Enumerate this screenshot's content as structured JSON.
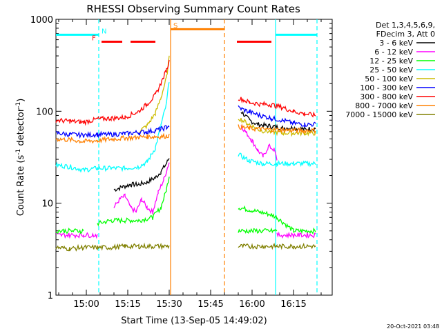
{
  "chart_data": {
    "type": "line",
    "title": "RHESSI Observing Summary Count Rates",
    "ylabel_main": "Count Rate (s",
    "ylabel_sup1": "-1",
    "ylabel_mid": " detector",
    "ylabel_sup2": "-1",
    "ylabel_end": ")",
    "xlabel": "Start Time (13-Sep-05 14:49:02)",
    "timestamp": "20-Oct-2021 03:48",
    "yscale": "log",
    "ylim": [
      1,
      1000
    ],
    "xlim_min": [
      0,
      100
    ],
    "y_ticks": [
      {
        "value": 1,
        "label": "1"
      },
      {
        "value": 10,
        "label": "10"
      },
      {
        "value": 100,
        "label": "100"
      },
      {
        "value": 1000,
        "label": "1000"
      }
    ],
    "x_ticks": [
      {
        "value": 11,
        "label": "15:00"
      },
      {
        "value": 26,
        "label": "15:15"
      },
      {
        "value": 41,
        "label": "15:30"
      },
      {
        "value": 56,
        "label": "15:45"
      },
      {
        "value": 71,
        "label": "16:00"
      },
      {
        "value": 86,
        "label": "16:15"
      }
    ],
    "legend_header": [
      "Det 1,3,4,5,6,9,",
      "FDecim 3, Att 0"
    ],
    "series": [
      {
        "name": "3 - 6 keV",
        "color": "#000000",
        "points": [
          [
            21,
            14
          ],
          [
            24,
            15
          ],
          [
            27,
            16
          ],
          [
            30,
            16
          ],
          [
            33,
            17
          ],
          [
            36,
            19
          ],
          [
            38,
            22
          ],
          [
            40,
            27
          ],
          [
            41,
            31
          ],
          [
            67,
            100
          ],
          [
            70,
            80
          ],
          [
            73,
            72
          ],
          [
            76,
            70
          ],
          [
            79,
            68
          ],
          [
            82,
            66
          ],
          [
            86,
            66
          ],
          [
            90,
            64
          ],
          [
            94,
            65
          ]
        ]
      },
      {
        "name": "6 - 12 keV",
        "color": "#ff00ff",
        "points": [
          [
            21,
            9
          ],
          [
            23,
            11
          ],
          [
            25,
            12
          ],
          [
            27,
            9
          ],
          [
            29,
            8
          ],
          [
            31,
            11
          ],
          [
            33,
            9
          ],
          [
            35,
            8
          ],
          [
            37,
            13
          ],
          [
            39,
            18
          ],
          [
            41,
            28
          ],
          [
            67,
            70
          ],
          [
            69,
            58
          ],
          [
            71,
            48
          ],
          [
            73,
            38
          ],
          [
            75,
            32
          ],
          [
            77,
            42
          ],
          [
            79,
            38
          ],
          [
            80,
            30
          ]
        ]
      },
      {
        "name": "12 - 25 keV",
        "color": "#00ff00",
        "points": [
          [
            15,
            6
          ],
          [
            20,
            6.5
          ],
          [
            25,
            6.5
          ],
          [
            30,
            6.5
          ],
          [
            35,
            7
          ],
          [
            38,
            9
          ],
          [
            40,
            14
          ],
          [
            41,
            20
          ],
          [
            66,
            9
          ],
          [
            70,
            8.5
          ],
          [
            74,
            8
          ],
          [
            78,
            7.5
          ],
          [
            80,
            7
          ],
          [
            86,
            5
          ],
          [
            94,
            5
          ]
        ]
      },
      {
        "name": "25 - 50 keV",
        "color": "#00ffff",
        "points": [
          [
            0,
            26
          ],
          [
            5,
            25
          ],
          [
            10,
            23
          ],
          [
            15,
            24
          ],
          [
            20,
            24
          ],
          [
            25,
            24
          ],
          [
            30,
            25
          ],
          [
            33,
            28
          ],
          [
            36,
            40
          ],
          [
            38,
            70
          ],
          [
            40,
            120
          ],
          [
            41,
            220
          ],
          [
            66,
            34
          ],
          [
            70,
            29
          ],
          [
            75,
            27
          ],
          [
            80,
            27
          ],
          [
            86,
            27
          ],
          [
            94,
            27
          ]
        ]
      },
      {
        "name": "50 - 100 keV",
        "color": "#ccbb00",
        "points": [
          [
            30,
            60
          ],
          [
            33,
            70
          ],
          [
            36,
            95
          ],
          [
            38,
            140
          ],
          [
            40,
            230
          ],
          [
            41,
            380
          ],
          [
            66,
            85
          ],
          [
            70,
            72
          ],
          [
            74,
            62
          ],
          [
            78,
            60
          ],
          [
            82,
            58
          ],
          [
            86,
            58
          ],
          [
            90,
            58
          ],
          [
            94,
            58
          ]
        ]
      },
      {
        "name": "100 - 300 keV",
        "color": "#0000ff",
        "points": [
          [
            0,
            58
          ],
          [
            5,
            56
          ],
          [
            10,
            55
          ],
          [
            15,
            56
          ],
          [
            20,
            56
          ],
          [
            25,
            57
          ],
          [
            30,
            59
          ],
          [
            33,
            60
          ],
          [
            36,
            62
          ],
          [
            38,
            64
          ],
          [
            40,
            67
          ],
          [
            41,
            70
          ],
          [
            66,
            110
          ],
          [
            70,
            98
          ],
          [
            74,
            90
          ],
          [
            78,
            84
          ],
          [
            82,
            80
          ],
          [
            86,
            74
          ],
          [
            90,
            72
          ],
          [
            94,
            72
          ]
        ]
      },
      {
        "name": "300 - 800 keV",
        "color": "#ff0000",
        "points": [
          [
            0,
            80
          ],
          [
            5,
            78
          ],
          [
            10,
            76
          ],
          [
            15,
            82
          ],
          [
            20,
            84
          ],
          [
            25,
            86
          ],
          [
            30,
            100
          ],
          [
            33,
            120
          ],
          [
            36,
            150
          ],
          [
            38,
            200
          ],
          [
            40,
            280
          ],
          [
            41,
            350
          ],
          [
            66,
            140
          ],
          [
            70,
            125
          ],
          [
            74,
            120
          ],
          [
            78,
            118
          ],
          [
            82,
            110
          ],
          [
            86,
            100
          ],
          [
            90,
            94
          ],
          [
            94,
            90
          ]
        ]
      },
      {
        "name": "800 - 7000 keV",
        "color": "#ff8000",
        "points": [
          [
            0,
            50
          ],
          [
            5,
            49
          ],
          [
            10,
            47
          ],
          [
            15,
            48
          ],
          [
            20,
            50
          ],
          [
            25,
            51
          ],
          [
            30,
            52
          ],
          [
            33,
            53
          ],
          [
            36,
            53
          ],
          [
            38,
            53
          ],
          [
            40,
            54
          ],
          [
            41,
            55
          ],
          [
            66,
            68
          ],
          [
            70,
            65
          ],
          [
            74,
            64
          ],
          [
            78,
            63
          ],
          [
            82,
            63
          ],
          [
            86,
            62
          ],
          [
            90,
            62
          ],
          [
            94,
            62
          ]
        ]
      },
      {
        "name": "7000 - 15000 keV",
        "color": "#808000",
        "points": [
          [
            0,
            3.3
          ],
          [
            5,
            3.2
          ],
          [
            10,
            3.3
          ],
          [
            15,
            3.3
          ],
          [
            20,
            3.3
          ],
          [
            25,
            3.4
          ],
          [
            30,
            3.4
          ],
          [
            35,
            3.4
          ],
          [
            41,
            3.4
          ],
          [
            66,
            3.4
          ],
          [
            70,
            3.4
          ],
          [
            75,
            3.4
          ],
          [
            80,
            3.4
          ],
          [
            86,
            3.4
          ],
          [
            94,
            3.4
          ]
        ]
      },
      {
        "name": "6-12 keV flag",
        "color": "#ff00ff",
        "nolegend": true,
        "points": [
          [
            0,
            4.5
          ],
          [
            10,
            4.5
          ],
          [
            15,
            4.5
          ],
          [
            80,
            4.5
          ],
          [
            85,
            4.5
          ],
          [
            94,
            4.5
          ]
        ]
      },
      {
        "name": "12-25 keV flag",
        "color": "#00ff00",
        "nolegend": true,
        "points": [
          [
            0,
            5
          ],
          [
            10,
            5
          ],
          [
            66,
            5
          ],
          [
            75,
            5
          ],
          [
            80,
            5
          ]
        ]
      }
    ],
    "flags": [
      {
        "label": "N",
        "color": "#00ffff",
        "x": 15.5,
        "bars": [
          [
            0,
            15.5
          ],
          [
            79.5,
            94.5
          ]
        ],
        "level": 680
      },
      {
        "label": "F",
        "color": "#ff0000",
        "x": 15.5,
        "bars": [
          [
            16.5,
            24
          ],
          [
            27,
            36
          ],
          [
            65.5,
            78
          ]
        ],
        "level": 570
      },
      {
        "label": "S",
        "color": "#ff8000",
        "x": 41.5,
        "bars": [
          [
            41.5,
            61
          ]
        ],
        "level": 780
      }
    ],
    "vlines": [
      {
        "x": 15.5,
        "color": "#00ffff",
        "dash": true
      },
      {
        "x": 41.5,
        "color": "#ff8000",
        "dash": false
      },
      {
        "x": 61,
        "color": "#ff8000",
        "dash": true
      },
      {
        "x": 79.5,
        "color": "#00ffff",
        "dash": false
      },
      {
        "x": 94.5,
        "color": "#00ffff",
        "dash": true
      }
    ]
  }
}
